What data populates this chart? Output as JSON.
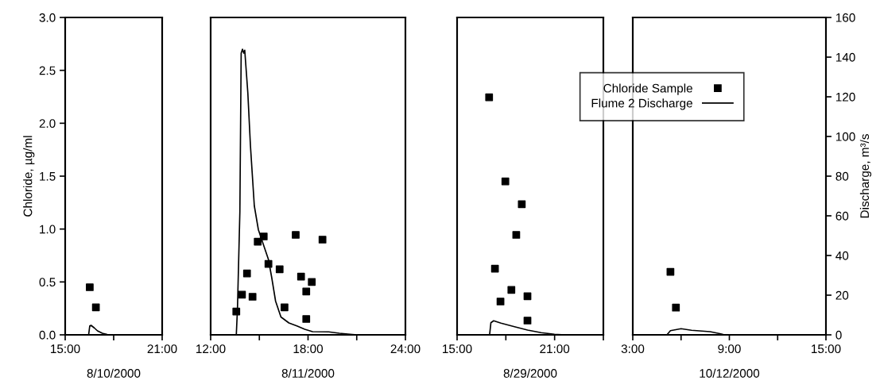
{
  "chart_data": [
    {
      "type": "scatter",
      "xlabel": "8/10/2000",
      "ylabel": "Chloride, µg/ml",
      "xlim": [
        15,
        21
      ],
      "xticks": [
        {
          "value": 15,
          "label": "15:00"
        },
        {
          "value": 18,
          "label": null
        },
        {
          "value": 21,
          "label": "21:00"
        }
      ],
      "ylim": [
        0,
        3
      ],
      "yticks": [
        {
          "value": 0,
          "label": "0.0"
        },
        {
          "value": 0.5,
          "label": "0.5"
        },
        {
          "value": 1,
          "label": "1.0"
        },
        {
          "value": 1.5,
          "label": "1.5"
        },
        {
          "value": 2,
          "label": "2.0"
        },
        {
          "value": 2.5,
          "label": "2.5"
        },
        {
          "value": 3,
          "label": "3.0"
        }
      ],
      "y2lim": [
        0,
        160
      ],
      "grid": false,
      "series": [
        {
          "marker": "square",
          "color": "#000000",
          "x": [
            16.52,
            16.9
          ],
          "values": [
            0.45,
            0.26
          ]
        },
        {
          "type": "line",
          "axis": "y2",
          "color": "#000000",
          "x": [
            16.45,
            16.52,
            16.6,
            16.8,
            17.0,
            17.3,
            17.6,
            18.0
          ],
          "values": [
            0,
            4.5,
            4.8,
            3.5,
            2,
            0.8,
            0.2,
            0
          ]
        }
      ]
    },
    {
      "type": "scatter",
      "xlabel": "8/11/2000",
      "xlim": [
        12,
        24
      ],
      "xticks": [
        {
          "value": 12,
          "label": "12:00"
        },
        {
          "value": 15,
          "label": null
        },
        {
          "value": 18,
          "label": "18:00"
        },
        {
          "value": 21,
          "label": null
        },
        {
          "value": 24,
          "label": "24:00"
        }
      ],
      "ylim": [
        0,
        3
      ],
      "y2lim": [
        0,
        160
      ],
      "tick_labels": "x",
      "grid": false,
      "series": [
        {
          "marker": "square",
          "color": "#000000",
          "x": [
            13.58,
            13.93,
            14.24,
            14.58,
            14.9,
            15.27,
            15.56,
            16.25,
            16.55,
            17.24,
            17.57,
            17.89,
            17.89,
            18.23,
            18.89
          ],
          "values": [
            0.22,
            0.38,
            0.58,
            0.36,
            0.88,
            0.93,
            0.67,
            0.62,
            0.26,
            0.945,
            0.55,
            0.41,
            0.15,
            0.5,
            0.9
          ]
        },
        {
          "type": "line",
          "axis": "y2",
          "color": "#000000",
          "x": [
            13.58,
            13.65,
            13.8,
            13.88,
            13.96,
            14.04,
            14.1,
            14.29,
            14.45,
            14.69,
            14.94,
            15.27,
            15.56,
            15.76,
            16.0,
            16.33,
            16.82,
            17.31,
            17.8,
            18.28,
            19.27,
            19.93,
            20.73,
            21.0
          ],
          "values": [
            0,
            12.8,
            62,
            142,
            144,
            142,
            143.5,
            122,
            95.5,
            65,
            53,
            45,
            38,
            29,
            17,
            9,
            6,
            4.5,
            2.8,
            1.6,
            1.5,
            0.8,
            0.2,
            0
          ]
        }
      ]
    },
    {
      "type": "scatter",
      "xlabel": "8/29/2000",
      "xlim": [
        15,
        24
      ],
      "xticks": [
        {
          "value": 15,
          "label": "15:00"
        },
        {
          "value": 18,
          "label": null
        },
        {
          "value": 21,
          "label": "21:00"
        },
        {
          "value": 24,
          "label": null
        }
      ],
      "ylim": [
        0,
        3
      ],
      "y2lim": [
        0,
        160
      ],
      "tick_labels": "x",
      "grid": false,
      "series": [
        {
          "marker": "square",
          "color": "#000000",
          "x": [
            16.97,
            17.97,
            18.98,
            18.64,
            17.33,
            18.34,
            17.67,
            19.33,
            19.33
          ],
          "values": [
            2.245,
            1.45,
            1.235,
            0.945,
            0.625,
            0.425,
            0.315,
            0.365,
            0.135
          ]
        },
        {
          "type": "line",
          "axis": "y2",
          "color": "#000000",
          "x": [
            17.0,
            17.08,
            17.25,
            17.7,
            18.53,
            19.34,
            20.17,
            20.99,
            21.6
          ],
          "values": [
            0,
            6.1,
            7.1,
            5.9,
            4.1,
            2.4,
            1.1,
            0.3,
            0
          ]
        }
      ]
    },
    {
      "type": "scatter",
      "xlabel": "10/12/2000",
      "y2label": "Discharge, m³/s",
      "xlim": [
        3,
        15
      ],
      "xticks": [
        {
          "value": 3,
          "label": "3:00"
        },
        {
          "value": 6,
          "label": null
        },
        {
          "value": 9,
          "label": "9:00"
        },
        {
          "value": 12,
          "label": null
        },
        {
          "value": 15,
          "label": "15:00"
        }
      ],
      "ylim": [
        0,
        3
      ],
      "y2lim": [
        0,
        160
      ],
      "y2ticks": [
        0,
        20,
        40,
        60,
        80,
        100,
        120,
        140,
        160
      ],
      "grid": false,
      "legend": "top left",
      "series": [
        {
          "marker": "square",
          "name": "Chloride Sample",
          "color": "#000000",
          "x": [
            5.34,
            5.68
          ],
          "values": [
            0.595,
            0.257
          ]
        },
        {
          "type": "line",
          "axis": "y2",
          "name": "Flume 2 Discharge",
          "color": "#000000",
          "x": [
            5.12,
            5.34,
            6.0,
            6.65,
            7.8,
            8.47,
            8.7
          ],
          "values": [
            0,
            2.1,
            3.1,
            2.3,
            1.6,
            0.5,
            0
          ]
        }
      ]
    }
  ]
}
